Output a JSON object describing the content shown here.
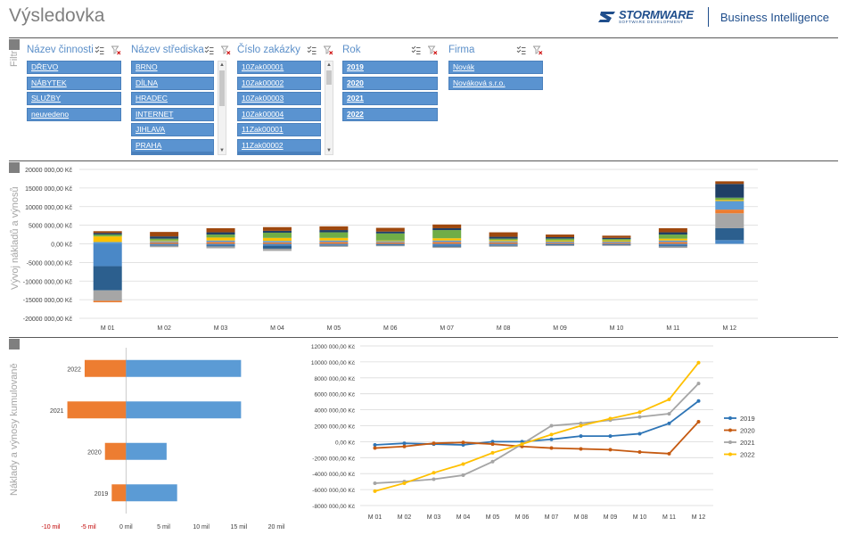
{
  "page": {
    "title": "Výsledovka"
  },
  "brand": {
    "logo_name": "STORMWARE",
    "logo_sub": "SOFTWARE DEVELOPMENT",
    "product": "Business Intelligence"
  },
  "sections": {
    "filters_label": "Filtr",
    "chart1_label": "Vývoj nákladů a výnosů",
    "chart2_label": "Náklady a výnosy kumulovaně"
  },
  "slicers": [
    {
      "title": "Název činnosti",
      "items": [
        "DŘEVO",
        "NÁBYTEK",
        "SLUŽBY",
        "neuvedeno"
      ]
    },
    {
      "title": "Název střediska",
      "items": [
        "BRNO",
        "DÍLNA",
        "HRADEC",
        "INTERNET",
        "JIHLAVA",
        "PRAHA"
      ]
    },
    {
      "title": "Číslo zakázky",
      "items": [
        "10Zak00001",
        "10Zak00002",
        "10Zak00003",
        "10Zak00004",
        "11Zak00001",
        "11Zak00002"
      ]
    },
    {
      "title": "Rok",
      "items": [
        "2019",
        "2020",
        "2021",
        "2022"
      ]
    },
    {
      "title": "Firma",
      "items": [
        "Novák",
        "Nováková s.r.o."
      ]
    }
  ],
  "chart_data": [
    {
      "type": "bar",
      "stacked": true,
      "categories": [
        "M 01",
        "M 02",
        "M 03",
        "M 04",
        "M 05",
        "M 06",
        "M 07",
        "M 08",
        "M 09",
        "M 10",
        "M 11",
        "M 12"
      ],
      "ylim": [
        -20000,
        20000
      ],
      "yticks": [
        "-20000 000,00 Kč",
        "-15000 000,00 Kč",
        "-10000 000,00 Kč",
        "-5000 000,00 Kč",
        "0,00 Kč",
        "5000 000,00 Kč",
        "10000 000,00 Kč",
        "15000 000,00 Kč",
        "20000 000,00 Kč"
      ],
      "ytick_values": [
        -20000,
        -15000,
        -10000,
        -5000,
        0,
        5000,
        10000,
        15000,
        20000
      ],
      "series": [
        {
          "color": "#4a88c7",
          "values": [
            -6000,
            -300,
            -400,
            -500,
            -300,
            -250,
            -500,
            -300,
            -250,
            -200,
            -400,
            1000
          ]
        },
        {
          "color": "#2c5f8e",
          "values": [
            -6500,
            -200,
            -300,
            -800,
            -200,
            -200,
            -300,
            -200,
            -150,
            -150,
            -300,
            3200
          ]
        },
        {
          "color": "#a6a6a6",
          "values": [
            -2800,
            -400,
            -500,
            -600,
            -300,
            -200,
            -300,
            -300,
            -200,
            -200,
            -400,
            4000
          ]
        },
        {
          "color": "#ed7d31",
          "values": [
            -400,
            400,
            500,
            400,
            500,
            400,
            500,
            400,
            300,
            300,
            500,
            1000
          ]
        },
        {
          "color": "#5b9bd5",
          "values": [
            500,
            300,
            400,
            400,
            400,
            300,
            400,
            300,
            300,
            300,
            400,
            2300
          ]
        },
        {
          "color": "#ffc000",
          "values": [
            1500,
            200,
            800,
            800,
            700,
            200,
            600,
            300,
            300,
            300,
            500,
            300
          ]
        },
        {
          "color": "#70ad47",
          "values": [
            500,
            500,
            800,
            1400,
            1500,
            1900,
            2200,
            400,
            500,
            400,
            1100,
            600
          ]
        },
        {
          "color": "#1f3f66",
          "values": [
            400,
            600,
            600,
            500,
            600,
            500,
            500,
            500,
            400,
            300,
            600,
            3700
          ]
        },
        {
          "color": "#9e480e",
          "values": [
            500,
            1200,
            1100,
            1000,
            1000,
            1000,
            1000,
            1200,
            700,
            600,
            1100,
            700
          ]
        }
      ]
    },
    {
      "type": "bar",
      "orientation": "horizontal",
      "categories": [
        "2022",
        "2021",
        "2020",
        "2019"
      ],
      "xlim": [
        -10,
        20
      ],
      "xticks": [
        "-10 mil",
        "-5 mil",
        "0 mil",
        "5 mil",
        "10 mil",
        "15 mil",
        "20 mil"
      ],
      "xtick_values": [
        -10,
        -5,
        0,
        5,
        10,
        15,
        20
      ],
      "series": [
        {
          "color": "#ed7d31",
          "values": [
            -5.5,
            -7.8,
            -2.8,
            -1.9
          ]
        },
        {
          "color": "#5b9bd5",
          "values": [
            15.3,
            15.3,
            5.4,
            6.8
          ]
        }
      ]
    },
    {
      "type": "line",
      "categories": [
        "M 01",
        "M 02",
        "M 03",
        "M 04",
        "M 05",
        "M 06",
        "M 07",
        "M 08",
        "M 09",
        "M 10",
        "M 11",
        "M 12"
      ],
      "ylim": [
        -8000,
        12000
      ],
      "yticks": [
        "-8000 000,00 Kč",
        "-6000 000,00 Kč",
        "-4000 000,00 Kč",
        "-2000 000,00 Kč",
        "0,00 Kč",
        "2000 000,00 Kč",
        "4000 000,00 Kč",
        "6000 000,00 Kč",
        "8000 000,00 Kč",
        "10000 000,00 Kč",
        "12000 000,00 Kč"
      ],
      "ytick_values": [
        -8000,
        -6000,
        -4000,
        -2000,
        0,
        2000,
        4000,
        6000,
        8000,
        10000,
        12000
      ],
      "legend": "right",
      "series": [
        {
          "name": "2019",
          "color": "#2e75b6",
          "values": [
            -400,
            -200,
            -300,
            -400,
            0,
            0,
            300,
            700,
            700,
            1000,
            2300,
            5100
          ]
        },
        {
          "name": "2020",
          "color": "#c55a11",
          "values": [
            -800,
            -600,
            -200,
            -100,
            -300,
            -600,
            -800,
            -900,
            -1000,
            -1300,
            -1500,
            2500
          ]
        },
        {
          "name": "2021",
          "color": "#a5a5a5",
          "values": [
            -5200,
            -5000,
            -4700,
            -4200,
            -2500,
            -300,
            2000,
            2300,
            2700,
            3100,
            3500,
            7300
          ]
        },
        {
          "name": "2022",
          "color": "#ffc000",
          "values": [
            -6200,
            -5200,
            -3900,
            -2800,
            -1400,
            -300,
            900,
            2000,
            2900,
            3700,
            5300,
            9900
          ]
        }
      ]
    }
  ]
}
